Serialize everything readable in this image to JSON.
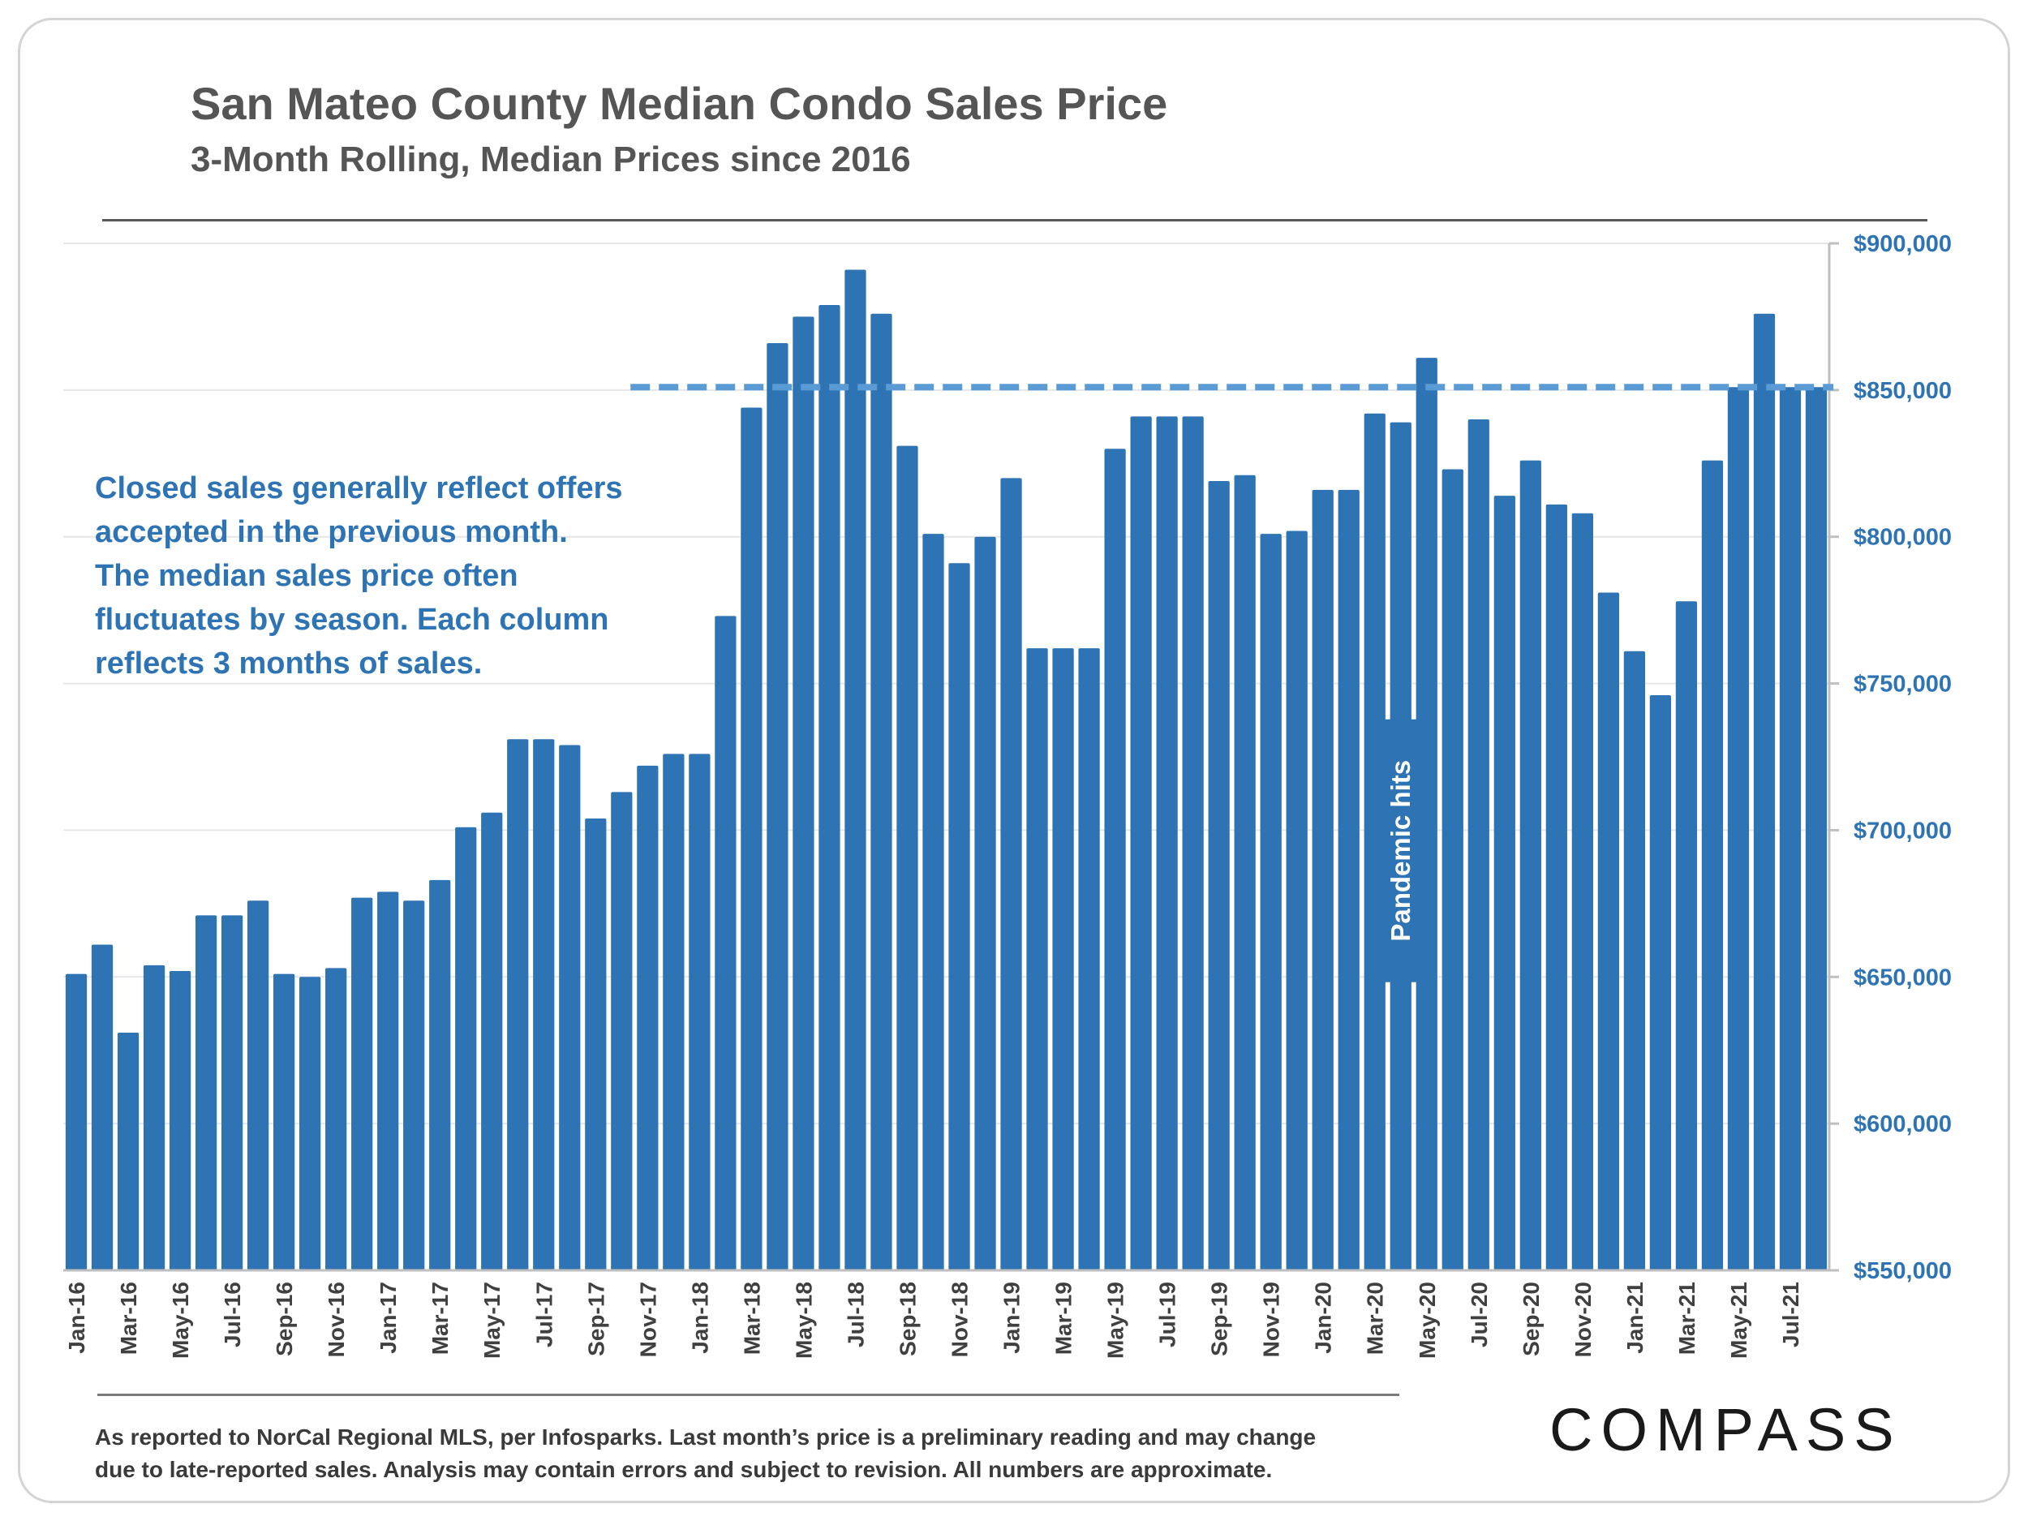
{
  "header": {
    "title": "San Mateo County Median Condo Sales Price",
    "subtitle": "3-Month Rolling, Median Prices since 2016"
  },
  "note": {
    "lines": [
      "Closed sales generally reflect offers",
      "accepted in the previous month.",
      "The median sales price often",
      "fluctuates by season. Each column",
      "reflects 3 months of sales."
    ]
  },
  "footnote": {
    "lines": [
      "As reported to NorCal Regional MLS, per Infosparks. Last month’s price is a preliminary reading and may change",
      "due to late-reported sales. Analysis may contain errors and subject to revision. All numbers are approximate."
    ]
  },
  "logo": {
    "text": "COMPASS"
  },
  "colors": {
    "bar": "#2e74b5",
    "reference_line": "#5b9bd5",
    "axis_text": "#2e74b5",
    "text": "#555555"
  },
  "chart_data": {
    "type": "bar",
    "title": "San Mateo County Median Condo Sales Price",
    "subtitle": "3-Month Rolling, Median Prices since 2016",
    "y_axis_side": "right",
    "ylim": [
      550000,
      900000
    ],
    "yticks": [
      550000,
      600000,
      650000,
      700000,
      750000,
      800000,
      850000,
      900000
    ],
    "ytick_labels": [
      "$550,000",
      "$600,000",
      "$650,000",
      "$700,000",
      "$750,000",
      "$800,000",
      "$850,000",
      "$900,000"
    ],
    "categories": [
      "Jan-16",
      "Feb-16",
      "Mar-16",
      "Apr-16",
      "May-16",
      "Jun-16",
      "Jul-16",
      "Aug-16",
      "Sep-16",
      "Oct-16",
      "Nov-16",
      "Dec-16",
      "Jan-17",
      "Feb-17",
      "Mar-17",
      "Apr-17",
      "May-17",
      "Jun-17",
      "Jul-17",
      "Aug-17",
      "Sep-17",
      "Oct-17",
      "Nov-17",
      "Dec-17",
      "Jan-18",
      "Feb-18",
      "Mar-18",
      "Apr-18",
      "May-18",
      "Jun-18",
      "Jul-18",
      "Aug-18",
      "Sep-18",
      "Oct-18",
      "Nov-18",
      "Dec-18",
      "Jan-19",
      "Feb-19",
      "Mar-19",
      "Apr-19",
      "May-19",
      "Jun-19",
      "Jul-19",
      "Aug-19",
      "Sep-19",
      "Oct-19",
      "Nov-19",
      "Dec-19",
      "Jan-20",
      "Feb-20",
      "Mar-20",
      "Apr-20",
      "May-20",
      "Jun-20",
      "Jul-20",
      "Aug-20",
      "Sep-20",
      "Oct-20",
      "Nov-20",
      "Dec-20",
      "Jan-21",
      "Feb-21",
      "Mar-21",
      "Apr-21",
      "May-21",
      "Jun-21",
      "Jul-21",
      "Aug-21"
    ],
    "xtick_labels": [
      "Jan-16",
      "Mar-16",
      "May-16",
      "Jul-16",
      "Sep-16",
      "Nov-16",
      "Jan-17",
      "Mar-17",
      "May-17",
      "Jul-17",
      "Sep-17",
      "Nov-17",
      "Jan-18",
      "Mar-18",
      "May-18",
      "Jul-18",
      "Sep-18",
      "Nov-18",
      "Jan-19",
      "Mar-19",
      "May-19",
      "Jul-19",
      "Sep-19",
      "Nov-19",
      "Jan-20",
      "Mar-20",
      "May-20",
      "Jul-20",
      "Sep-20",
      "Nov-20",
      "Jan-21",
      "Mar-21",
      "May-21",
      "Jul-21"
    ],
    "values": [
      651000,
      661000,
      631000,
      654000,
      652000,
      671000,
      671000,
      676000,
      651000,
      650000,
      653000,
      677000,
      679000,
      676000,
      683000,
      701000,
      706000,
      731000,
      731000,
      729000,
      704000,
      713000,
      722000,
      726000,
      726000,
      773000,
      844000,
      866000,
      875000,
      879000,
      891000,
      876000,
      831000,
      801000,
      791000,
      800000,
      820000,
      762000,
      762000,
      762000,
      830000,
      841000,
      841000,
      841000,
      819000,
      821000,
      801000,
      802000,
      816000,
      816000,
      842000,
      839000,
      861000,
      823000,
      840000,
      814000,
      826000,
      811000,
      808000,
      781000,
      761000,
      746000,
      778000,
      826000,
      851000,
      876000,
      851000,
      851000
    ],
    "reference_line": {
      "value": 851000,
      "start_category": "Nov-17",
      "end_category": "Aug-21",
      "style": "dashed"
    },
    "annotations": [
      {
        "text": "Pandemic hits",
        "category": "Apr-20",
        "value": 693000,
        "orientation": "vertical"
      }
    ]
  }
}
